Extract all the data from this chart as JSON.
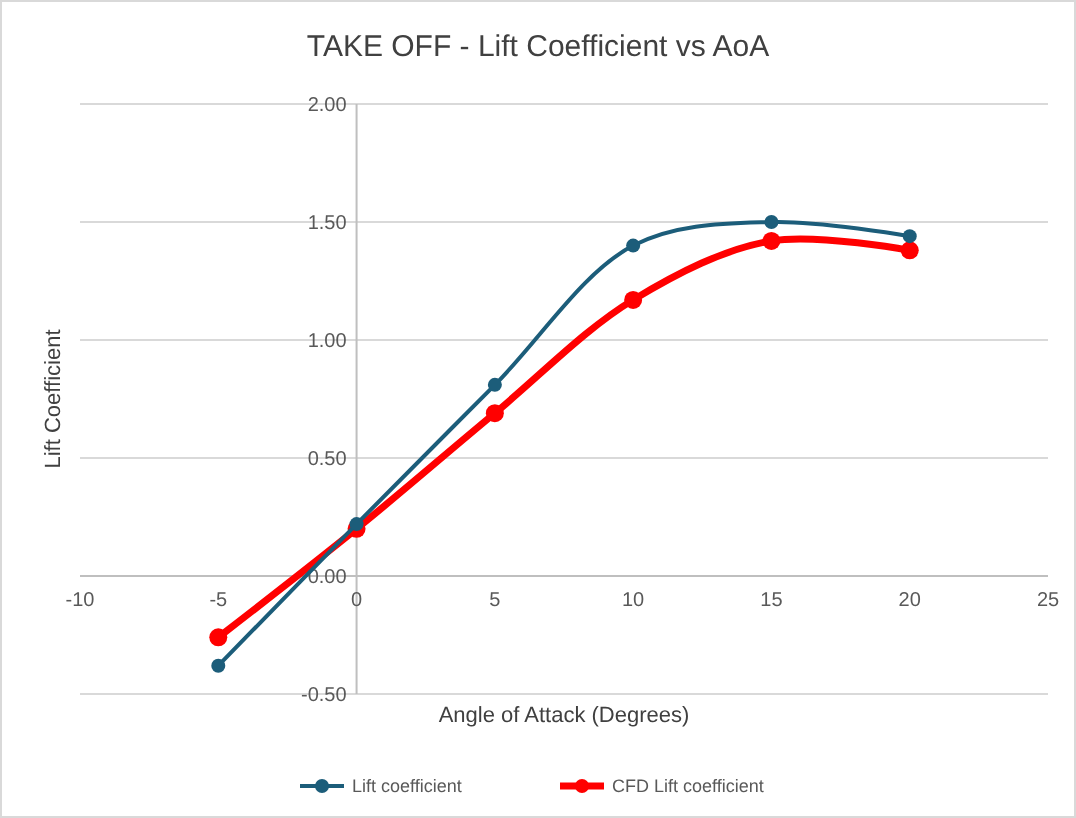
{
  "chart_data": {
    "type": "line",
    "title": "TAKE OFF - Lift Coefficient vs AoA",
    "xlabel": "Angle of Attack (Degrees)",
    "ylabel": "Lift Coefficient",
    "x": [
      -5,
      0,
      5,
      10,
      15,
      20
    ],
    "series": [
      {
        "name": "Lift coefficient",
        "color": "#1c5d7a",
        "values": [
          -0.38,
          0.22,
          0.81,
          1.4,
          1.5,
          1.44
        ]
      },
      {
        "name": "CFD Lift coefficient",
        "color": "#ff0000",
        "values": [
          -0.26,
          0.2,
          0.69,
          1.17,
          1.42,
          1.38
        ]
      }
    ],
    "xlim": [
      -10,
      25
    ],
    "xticks": [
      -10,
      -5,
      0,
      5,
      10,
      15,
      20,
      25
    ],
    "ylim": [
      -0.5,
      2.0
    ],
    "yticks": [
      {
        "value": -0.5,
        "label": "-0.50"
      },
      {
        "value": 0,
        "label": "0.00"
      },
      {
        "value": 0.5,
        "label": "0.50"
      },
      {
        "value": 1,
        "label": "1.00"
      },
      {
        "value": 1.5,
        "label": "1.50"
      },
      {
        "value": 2,
        "label": "2.00"
      }
    ],
    "grid": "y",
    "legend": "bottom",
    "marker": "circle",
    "line_style": "solid"
  }
}
